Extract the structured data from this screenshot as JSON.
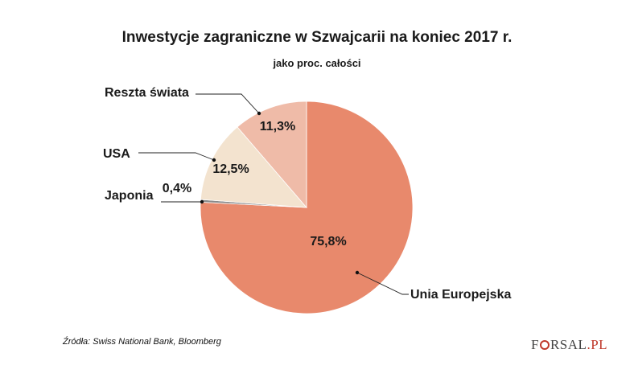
{
  "chart_data": {
    "type": "pie",
    "title": "Inwestycje zagraniczne w Szwajcarii na koniec 2017 r.",
    "subtitle": "jako proc. całości",
    "slices": [
      {
        "name": "Unia Europejska",
        "value": 75.8,
        "value_label": "75,8%",
        "color": "#e8896c"
      },
      {
        "name": "Japonia",
        "value": 0.4,
        "value_label": "0,4%",
        "color": "#8a8a8a"
      },
      {
        "name": "USA",
        "value": 12.5,
        "value_label": "12,5%",
        "color": "#f3e3cf"
      },
      {
        "name": "Reszta świata",
        "value": 11.3,
        "value_label": "11,3%",
        "color": "#efbba8"
      }
    ],
    "start": "top",
    "direction": "clockwise",
    "legend": "callout labels"
  },
  "footer": {
    "source": "Źródła: Swiss National Bank,  Bloomberg",
    "logo": "FORSAL.PL",
    "logo_left": "F",
    "logo_mid": "RSAL",
    "logo_right": ".PL"
  }
}
